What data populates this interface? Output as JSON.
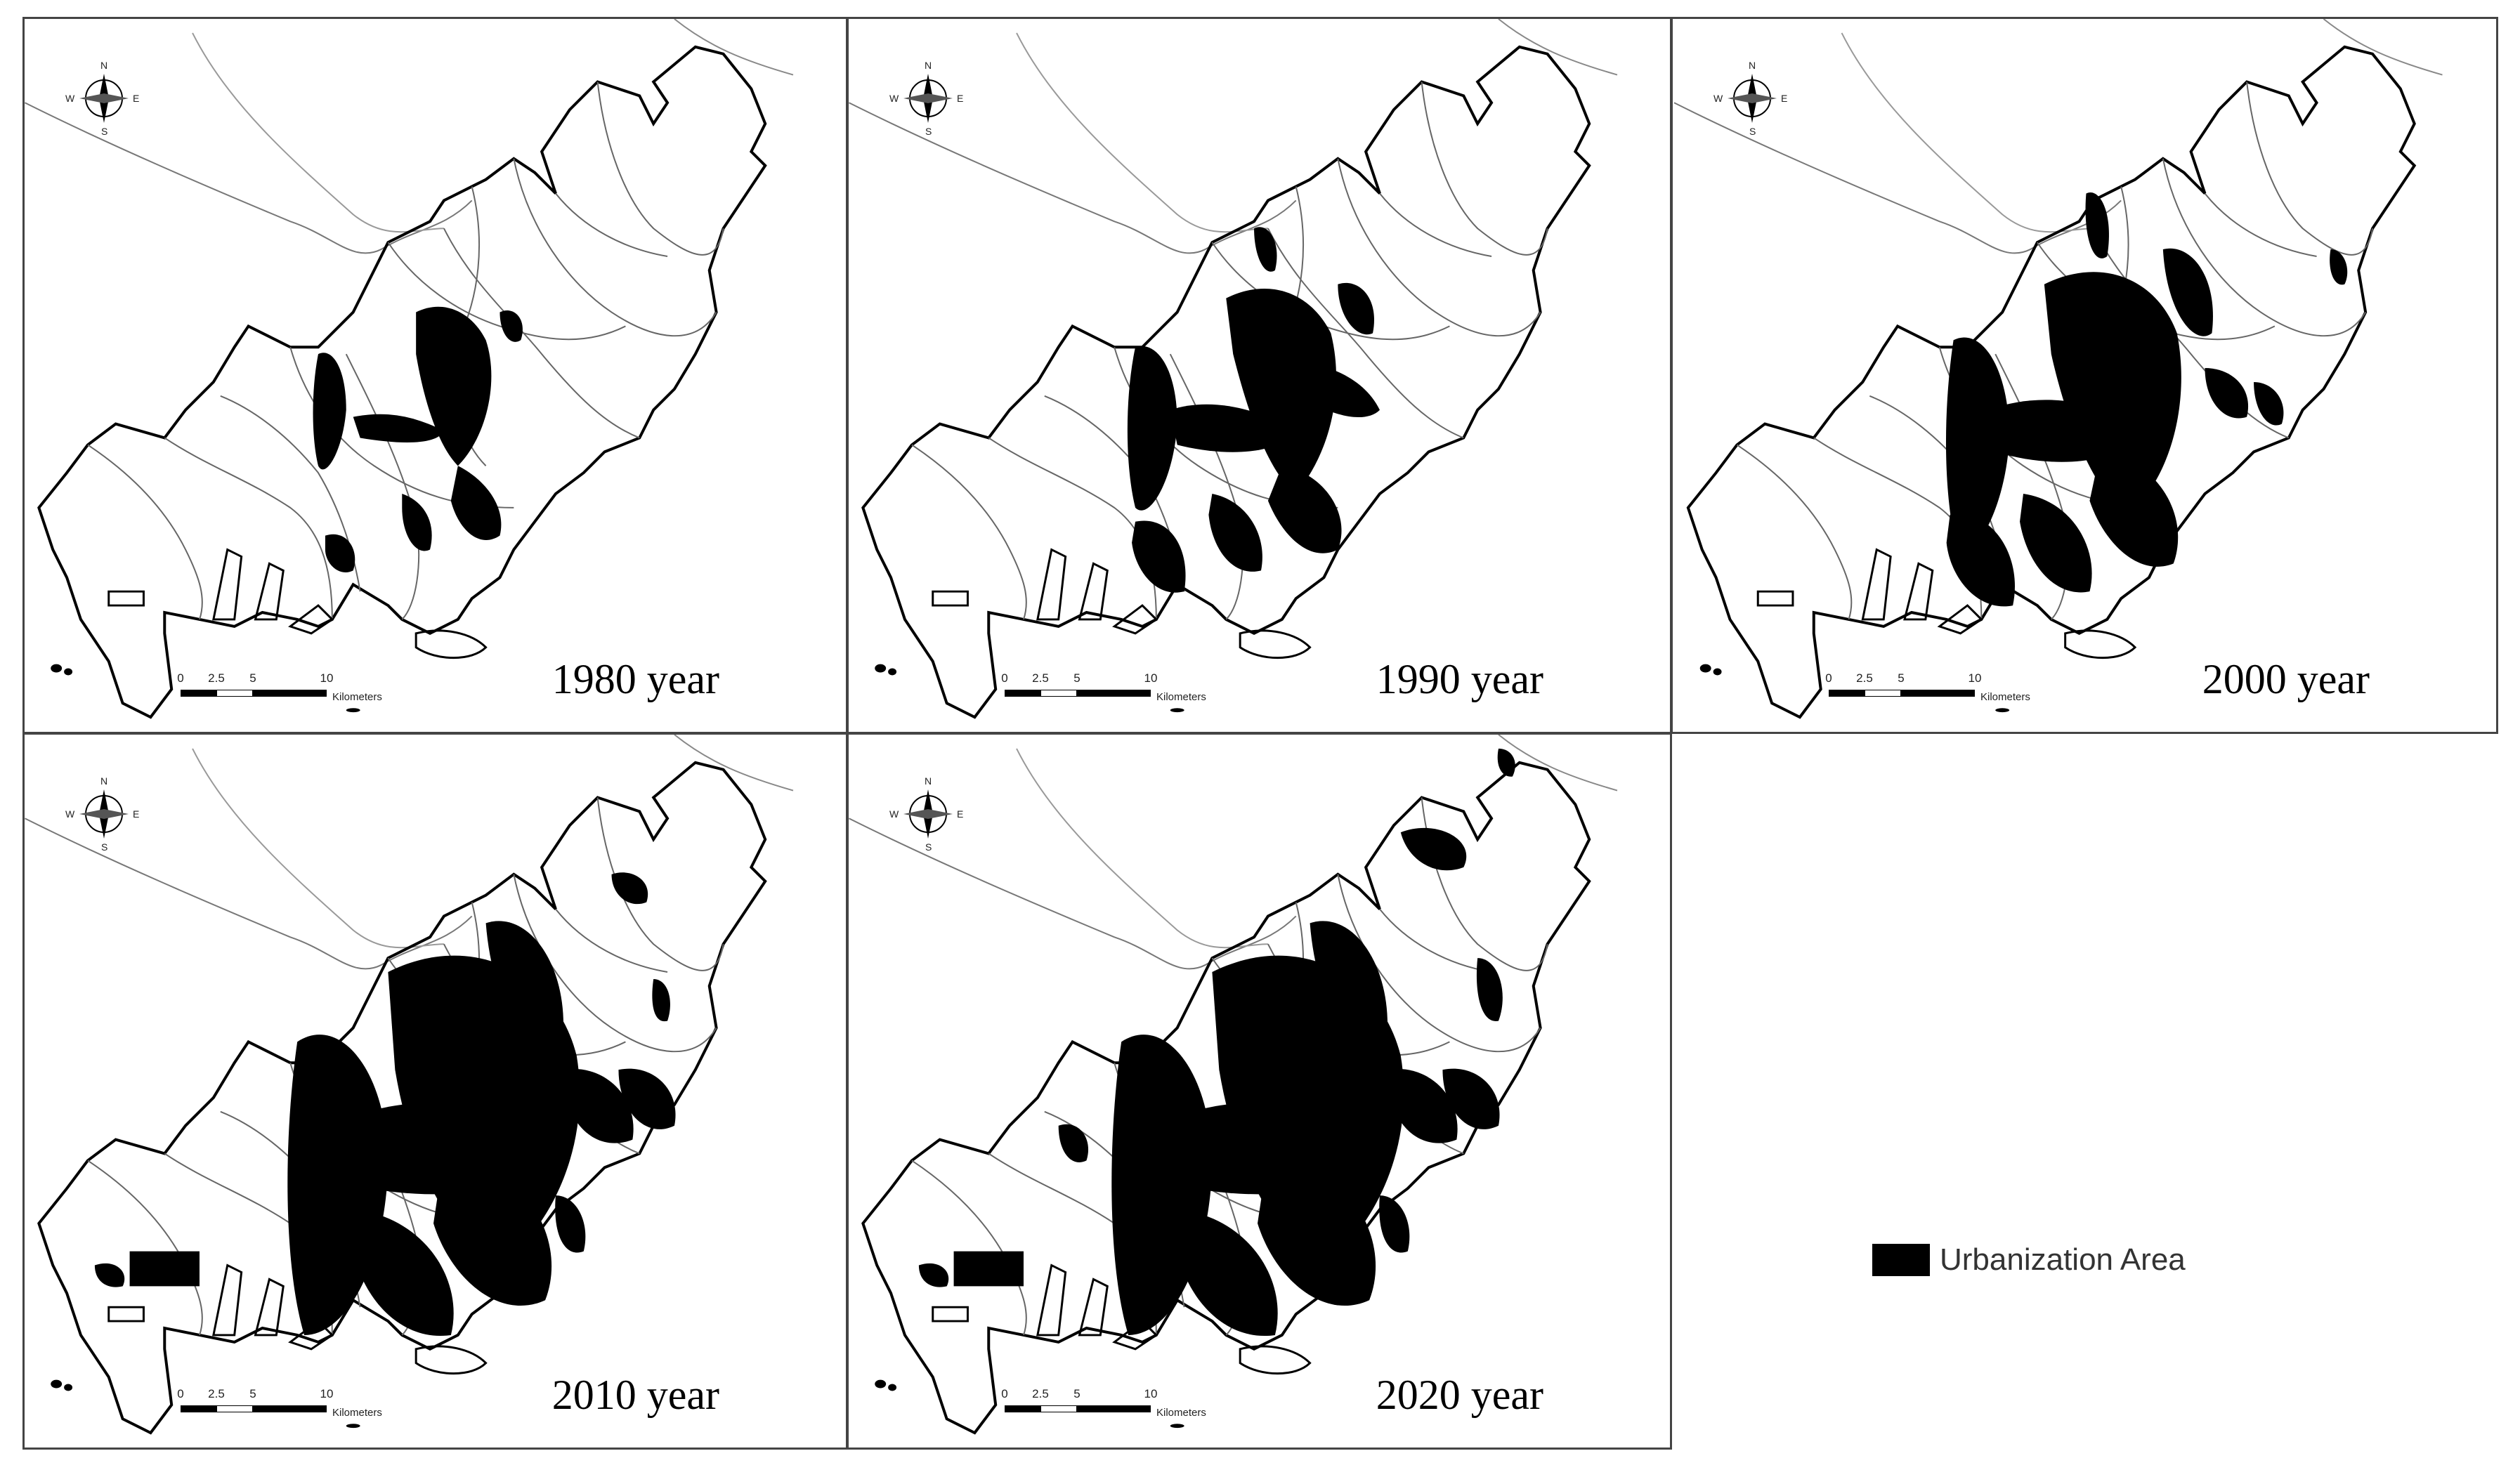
{
  "figure": {
    "panels": [
      {
        "year_label": "1980 year"
      },
      {
        "year_label": "1990 year"
      },
      {
        "year_label": "2000 year"
      },
      {
        "year_label": "2010 year"
      },
      {
        "year_label": "2020 year"
      }
    ],
    "north_arrow": {
      "n": "N",
      "s": "S",
      "e": "E",
      "w": "W"
    },
    "scale": {
      "ticks": [
        "0",
        "2.5",
        "5",
        "10"
      ],
      "unit": "Kilometers"
    },
    "legend": {
      "label": "Urbanization Area",
      "color": "#000000"
    }
  }
}
